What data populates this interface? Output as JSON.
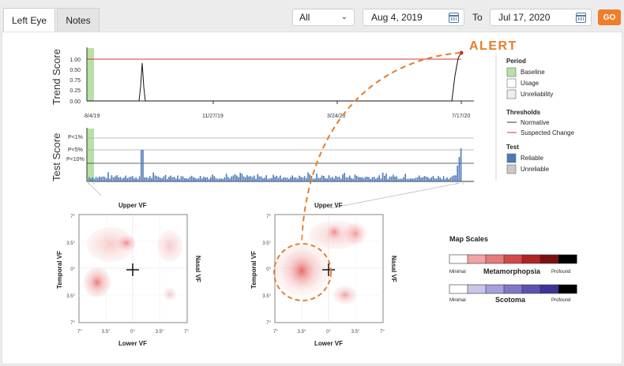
{
  "tabs": [
    {
      "label": "Left Eye",
      "active": true
    },
    {
      "label": "Notes",
      "active": false
    }
  ],
  "filter": {
    "selected": "All"
  },
  "date_range": {
    "from": "Aug 4, 2019",
    "to_label": "To",
    "to": "Jul 17, 2020",
    "go_label": "GO"
  },
  "alert_label": "ALERT",
  "trend": {
    "ylabel": "Trend Score",
    "yticks": [
      "1.00",
      "0.75",
      "0.50",
      "0.25",
      "0.00"
    ],
    "xticks": [
      "8/4/19",
      "11/27/19",
      "3/24/20",
      "7/17/20"
    ]
  },
  "test": {
    "ylabel": "Test Score",
    "levels": [
      "P<1%",
      "P<5%",
      "P<10%"
    ]
  },
  "legend": {
    "period_title": "Period",
    "period_items": [
      "Baseline",
      "Usage",
      "Unreliability"
    ],
    "thresholds_title": "Thresholds",
    "threshold_items": [
      "Normative",
      "Suspected Change"
    ],
    "test_title": "Test",
    "test_items": [
      "Reliable",
      "Unreliable"
    ]
  },
  "maps": {
    "upper": "Upper VF",
    "lower": "Lower VF",
    "left": "Temporal VF",
    "right": "Nasal VF",
    "yticks": [
      "7°",
      "3.5°",
      "0°",
      "3.5°",
      "7°"
    ],
    "xticks": [
      "7°",
      "3.5°",
      "0°",
      "3.5°",
      "7°"
    ]
  },
  "scales": {
    "title": "Map Scales",
    "meta_label": "Metamorphopsia",
    "scot_label": "Scotoma",
    "min_label": "Minimal",
    "max_label": "Profound",
    "meta_colors": [
      "#ffffff",
      "#f2a3a3",
      "#e77a7a",
      "#d54848",
      "#b02424",
      "#7c1010",
      "#000000"
    ],
    "scot_colors": [
      "#ffffff",
      "#c9c6ea",
      "#a4a0db",
      "#7f78c8",
      "#5b52b3",
      "#3b3498",
      "#000000"
    ]
  },
  "colors": {
    "accent": "#f07d2c",
    "baseline": "#b9e0a5",
    "reliable": "#4d79b8",
    "suspected": "#d9363e"
  }
}
